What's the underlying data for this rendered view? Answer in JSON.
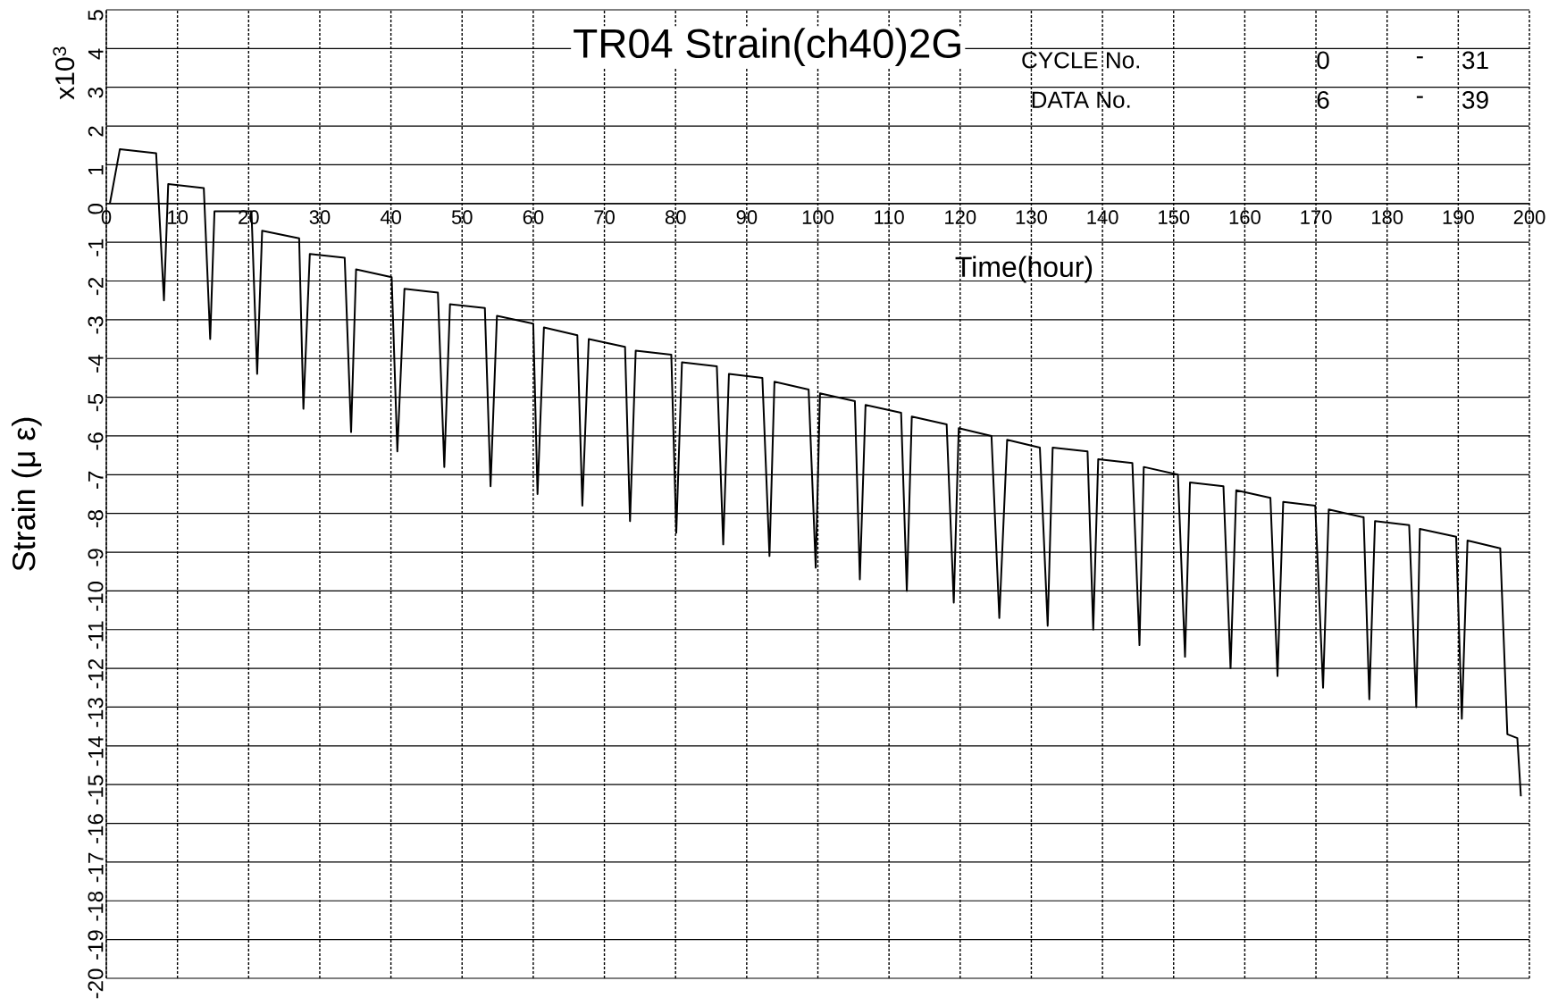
{
  "chart_data": {
    "type": "line",
    "title": "TR04 Strain(ch40)2G",
    "xlabel": "Time(hour)",
    "ylabel": "Strain (μ ε)",
    "annotations": [
      "x10$^{3}$",
      "CYCLE No.",
      "0",
      "-",
      "31",
      "DATA No.",
      "6",
      "-",
      "39"
    ],
    "xlim": [
      0,
      200
    ],
    "ylim": [
      -20,
      5
    ],
    "xticks": [
      0,
      10,
      20,
      30,
      40,
      50,
      60,
      70,
      80,
      90,
      100,
      110,
      120,
      130,
      140,
      150,
      160,
      170,
      180,
      190,
      200
    ],
    "yticks": [
      -20,
      -19,
      -18,
      -17,
      -16,
      -15,
      -14,
      -13,
      -12,
      -11,
      -10,
      -9,
      -8,
      -7,
      -6,
      -5,
      -4,
      -3,
      -2,
      -1,
      0,
      1,
      2,
      3,
      4,
      5
    ],
    "grid": true,
    "series": [
      {
        "color": "#000000",
        "x": [
          0.5,
          0.9,
          1.3,
          1.9,
          7.0,
          8.1,
          8.7,
          13.7,
          14.6,
          15.2,
          20.4,
          21.2,
          21.9,
          27.1,
          27.7,
          28.6,
          33.5,
          34.4,
          35.1,
          40.1,
          40.9,
          41.9,
          46.6,
          47.5,
          48.3,
          53.2,
          54.0,
          54.9,
          60.0,
          60.6,
          61.5,
          66.2,
          66.9,
          67.8,
          72.9,
          73.6,
          74.4,
          79.4,
          80.1,
          80.9,
          85.8,
          86.7,
          87.5,
          92.2,
          93.2,
          93.9,
          98.7,
          99.7,
          100.3,
          105.2,
          105.9,
          106.7,
          111.7,
          112.5,
          113.2,
          118.1,
          119.1,
          119.8,
          124.4,
          125.5,
          126.6,
          131.2,
          132.3,
          133.0,
          137.9,
          138.7,
          139.4,
          144.2,
          145.2,
          145.8,
          150.6,
          151.6,
          152.3,
          157.0,
          158.0,
          158.8,
          163.6,
          164.6,
          165.4,
          169.9,
          171.0,
          171.8,
          176.7,
          177.5,
          178.3,
          183.1,
          184.1,
          184.6,
          189.7,
          190.5,
          191.3,
          195.9,
          196.9,
          198.3,
          198.8
        ],
        "values": [
          0,
          0.4,
          0.8,
          1.4,
          1.3,
          -2.5,
          0.5,
          0.4,
          -3.5,
          -0.2,
          -0.2,
          -4.4,
          -0.7,
          -0.9,
          -5.3,
          -1.3,
          -1.4,
          -5.9,
          -1.7,
          -1.9,
          -6.4,
          -2.2,
          -2.3,
          -6.8,
          -2.6,
          -2.7,
          -7.3,
          -2.9,
          -3.1,
          -7.5,
          -3.2,
          -3.4,
          -7.8,
          -3.5,
          -3.7,
          -8.2,
          -3.8,
          -3.9,
          -8.5,
          -4.1,
          -4.2,
          -8.8,
          -4.4,
          -4.5,
          -9.1,
          -4.6,
          -4.8,
          -9.4,
          -4.9,
          -5.1,
          -9.7,
          -5.2,
          -5.4,
          -10.0,
          -5.5,
          -5.7,
          -10.3,
          -5.8,
          -6.0,
          -10.7,
          -6.1,
          -6.3,
          -10.9,
          -6.3,
          -6.4,
          -11.0,
          -6.6,
          -6.7,
          -11.4,
          -6.8,
          -7.0,
          -11.7,
          -7.2,
          -7.3,
          -12.0,
          -7.4,
          -7.6,
          -12.2,
          -7.7,
          -7.8,
          -12.5,
          -7.9,
          -8.1,
          -12.8,
          -8.2,
          -8.3,
          -13.0,
          -8.4,
          -8.6,
          -13.3,
          -8.7,
          -8.9,
          -13.7,
          -13.8,
          -15.3
        ]
      }
    ]
  }
}
